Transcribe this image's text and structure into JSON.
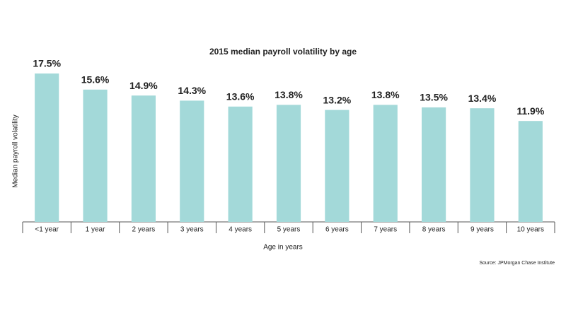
{
  "chart_data": {
    "type": "bar",
    "title": "2015 median payroll volatility by age",
    "x_label": "Age in years",
    "y_label": "Median payroll volatility",
    "source": "Source:  JPMorgan Chase Institute",
    "categories": [
      "<1 year",
      "1 year",
      "2 years",
      "3 years",
      "4 years",
      "5 years",
      "6 years",
      "7 years",
      "8 years",
      "9 years",
      "10 years"
    ],
    "values": [
      17.5,
      15.6,
      14.9,
      14.3,
      13.6,
      13.8,
      13.2,
      13.8,
      13.5,
      13.4,
      11.9
    ],
    "value_labels": [
      "17.5%",
      "15.6%",
      "14.9%",
      "14.3%",
      "13.6%",
      "13.8%",
      "13.2%",
      "13.8%",
      "13.5%",
      "13.4%",
      "11.9%"
    ],
    "color": "#a3d9d9",
    "label_color": "#3f7478",
    "ylim": [
      0,
      20
    ],
    "grid": false
  }
}
